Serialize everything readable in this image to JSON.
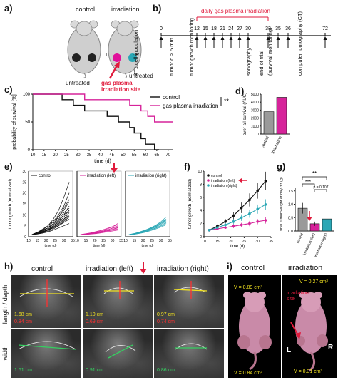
{
  "panel_a": {
    "label": "a)",
    "mouse_control": "control",
    "mouse_irradiation": "irradiation",
    "untreated_left": "untreated",
    "untreated_right": "untreated",
    "left_mark": "L",
    "right_mark": "R",
    "site_label_1": "gas plasma",
    "site_label_2": "irradiation site",
    "colors": {
      "treated": "#e0109a",
      "untreated_right": "#2aa7b5",
      "control_tumor": "#222222",
      "arrow": "#e01b3c"
    }
  },
  "panel_b": {
    "label": "b)",
    "bracket_label": "daily gas plasma irradiation",
    "ticks": [
      "0",
      "12",
      "15",
      "18",
      "21",
      "24",
      "27",
      "30",
      "33",
      "35",
      "36",
      "72"
    ],
    "events": [
      "4T1 cell inoculation",
      "tumor d > 5 mm",
      "tumor growth monitoring",
      "sonography",
      "end of trial",
      "(survival monitoring)",
      "computer tomography (CT)"
    ]
  },
  "panel_c": {
    "label": "c)",
    "ylabel": "probability of survival [%]",
    "xlabel": "time (d)",
    "legend": [
      "control",
      "gas plasma irradiation"
    ],
    "significance": "**",
    "xticks": [
      "10",
      "15",
      "20",
      "25",
      "30",
      "35",
      "40",
      "45",
      "50",
      "55",
      "60",
      "65",
      "70"
    ],
    "yticks": [
      "0",
      "50",
      "100"
    ]
  },
  "panel_d": {
    "label": "d)",
    "ylabel": "over-all survival (AUC)",
    "yticks": [
      "0",
      "1000",
      "2000",
      "3000",
      "4000",
      "5000"
    ],
    "categories": [
      "control",
      "irradiation"
    ]
  },
  "panel_e": {
    "label": "e)",
    "ylabel": "tumor growth (normalized)",
    "xlabel": "time (d)",
    "legends": [
      "control",
      "irradiation (left)",
      "irradiation (right)"
    ],
    "xticks": [
      "10",
      "15",
      "20",
      "25",
      "30",
      "35"
    ],
    "yticks": [
      "0",
      "5",
      "10",
      "15",
      "20",
      "25",
      "30"
    ]
  },
  "panel_f": {
    "label": "f)",
    "ylabel": "tumor growth (normalized)",
    "xlabel": "time (d)",
    "legend": [
      "control",
      "irradiation (left)",
      "irradiation (right)"
    ],
    "xticks": [
      "10",
      "15",
      "20",
      "25",
      "30",
      "35"
    ],
    "yticks": [
      "0",
      "2",
      "4",
      "6",
      "8",
      "10"
    ]
  },
  "panel_g": {
    "label": "g)",
    "ylabel": "final tumor weight at day 33 (g)",
    "yticks": [
      "0.0",
      "0.5",
      "1.0",
      "1.5"
    ],
    "categories": [
      "control",
      "irradiation (left)",
      "irradiation (right)"
    ],
    "sig_top": "**",
    "sig_mid": "***",
    "sig_p": "p = 0.107"
  },
  "panel_h": {
    "label": "h)",
    "columns": [
      "control",
      "irradiation (left)",
      "irradiation (right)"
    ],
    "row_labels": [
      "length / depth",
      "width"
    ],
    "measures_top": [
      [
        "1.68 cm",
        "0.84 cm"
      ],
      [
        "1.10 cm",
        "0.69 cm"
      ],
      [
        "0.97 cm",
        "0.74 cm"
      ]
    ],
    "measures_bottom": [
      "1.61 cm",
      "0.91 cm",
      "0.86 cm"
    ]
  },
  "panel_i": {
    "label": "i)",
    "columns": [
      "control",
      "irradiation"
    ],
    "vol_control_top": "V = 0.89 cm³",
    "vol_control_bottom": "V = 0.84 cm³",
    "vol_irr_top": "V = 0.27 cm³",
    "vol_irr_bottom": "V = 0.31 cm³",
    "site_1": "irradiation",
    "site_2": "site",
    "left_mark": "L",
    "right_mark": "R"
  },
  "chart_data": [
    {
      "type": "line",
      "panel": "c",
      "xlabel": "time (d)",
      "ylabel": "probability of survival [%]",
      "xlim": [
        10,
        72
      ],
      "ylim": [
        0,
        100
      ],
      "series": [
        {
          "name": "control",
          "color": "#111111",
          "steps": [
            [
              10,
              100
            ],
            [
              23,
              100
            ],
            [
              23,
              90
            ],
            [
              28,
              90
            ],
            [
              28,
              80
            ],
            [
              33,
              80
            ],
            [
              33,
              70
            ],
            [
              43,
              70
            ],
            [
              43,
              60
            ],
            [
              48,
              60
            ],
            [
              48,
              50
            ],
            [
              53,
              50
            ],
            [
              53,
              40
            ],
            [
              55,
              40
            ],
            [
              55,
              30
            ],
            [
              58,
              30
            ],
            [
              58,
              20
            ],
            [
              60,
              20
            ],
            [
              60,
              10
            ],
            [
              64,
              10
            ],
            [
              64,
              0
            ],
            [
              66,
              0
            ]
          ]
        },
        {
          "name": "gas plasma irradiation",
          "color": "#d6239a",
          "steps": [
            [
              10,
              100
            ],
            [
              33,
              100
            ],
            [
              33,
              90
            ],
            [
              53,
              90
            ],
            [
              53,
              80
            ],
            [
              58,
              80
            ],
            [
              58,
              70
            ],
            [
              61,
              70
            ],
            [
              61,
              60
            ],
            [
              64,
              60
            ],
            [
              64,
              50
            ],
            [
              72,
              50
            ]
          ]
        }
      ]
    },
    {
      "type": "bar",
      "panel": "d",
      "categories": [
        "control",
        "irradiation"
      ],
      "values": [
        2800,
        4600
      ],
      "ylim": [
        0,
        5000
      ],
      "colors": [
        "#9a9a9a",
        "#d6239a"
      ]
    },
    {
      "type": "line",
      "panel": "e",
      "xlabel": "time (d)",
      "xlim": [
        10,
        35
      ],
      "ylim": [
        0,
        30
      ],
      "days": [
        12,
        15,
        18,
        21,
        24,
        27,
        30,
        33
      ],
      "groups": [
        {
          "name": "control",
          "color": "#111111",
          "curves": [
            [
              1,
              2,
              3,
              5,
              8,
              12,
              18,
              25
            ],
            [
              1,
              1.5,
              3,
              4,
              7,
              10,
              14,
              20
            ],
            [
              1,
              2,
              2.5,
              4,
              6,
              9,
              12,
              16
            ],
            [
              1,
              1.5,
              2,
              3,
              5,
              7,
              10,
              14
            ],
            [
              1,
              2,
              3,
              4,
              6,
              8,
              11,
              13
            ],
            [
              1,
              1.5,
              2,
              3,
              4,
              6,
              8,
              11
            ],
            [
              1,
              1.2,
              2,
              3,
              4,
              5,
              7,
              9
            ],
            [
              1,
              1.5,
              2.2,
              3.5,
              5,
              6.5,
              9,
              12
            ],
            [
              1,
              1.3,
              1.8,
              2.5,
              3.5,
              5,
              6.5,
              8
            ],
            [
              1,
              1.6,
              2.4,
              3.2,
              4.5,
              6,
              8,
              10
            ],
            [
              1,
              2,
              3.5,
              5,
              7,
              9,
              13,
              17
            ],
            [
              1,
              1.4,
              2,
              3,
              4.2,
              5.5,
              7.5,
              9.5
            ],
            [
              1,
              1.2,
              1.6,
              2.2,
              3,
              4,
              5,
              6
            ],
            [
              1,
              1.8,
              2.8,
              4,
              5.5,
              7.5,
              10,
              12
            ]
          ]
        },
        {
          "name": "irradiation (left)",
          "color": "#d6239a",
          "curves": [
            [
              1,
              1.2,
              1.5,
              2,
              2.5,
              3,
              4,
              5
            ],
            [
              1,
              1.1,
              1.3,
              1.6,
              2,
              2.6,
              3.2,
              4
            ],
            [
              1,
              1.3,
              1.6,
              2.2,
              2.8,
              3.5,
              4.5,
              6
            ],
            [
              1,
              1,
              1.2,
              1.4,
              1.8,
              2.2,
              2.6,
              3
            ],
            [
              1,
              1.2,
              1.4,
              1.7,
              2.1,
              2.5,
              3,
              3.5
            ],
            [
              1,
              1.4,
              1.8,
              2.4,
              3,
              3.8,
              4.6,
              5.5
            ],
            [
              1,
              1.1,
              1.4,
              1.8,
              2.3,
              2.8,
              3.4,
              4.2
            ],
            [
              1,
              1.2,
              1.5,
              1.9,
              2.4,
              3.1,
              3.8,
              4.6
            ]
          ]
        },
        {
          "name": "irradiation (right)",
          "color": "#2aa7b5",
          "curves": [
            [
              1,
              1.4,
              2,
              2.8,
              3.8,
              5,
              6.5,
              8
            ],
            [
              1,
              1.3,
              1.8,
              2.5,
              3.4,
              4.4,
              5.6,
              7
            ],
            [
              1,
              1.5,
              2.2,
              3,
              4,
              5.2,
              6.8,
              9
            ],
            [
              1,
              1.2,
              1.6,
              2.2,
              3,
              3.8,
              4.8,
              6
            ],
            [
              1,
              1.3,
              1.9,
              2.6,
              3.5,
              4.6,
              6,
              7.5
            ],
            [
              1,
              1.1,
              1.5,
              2,
              2.7,
              3.5,
              4.4,
              5.5
            ],
            [
              1,
              1.4,
              2,
              2.7,
              3.6,
              4.7,
              6.1,
              7.8
            ],
            [
              1,
              1.2,
              1.7,
              2.3,
              3.1,
              4,
              5.1,
              6.5
            ]
          ]
        }
      ]
    },
    {
      "type": "line",
      "panel": "f",
      "xlabel": "time (d)",
      "ylabel": "tumor growth (normalized)",
      "xlim": [
        10,
        35
      ],
      "ylim": [
        0,
        10
      ],
      "x": [
        12,
        15,
        18,
        21,
        24,
        27,
        30,
        33
      ],
      "series": [
        {
          "name": "control",
          "color": "#111111",
          "values": [
            1,
            1.6,
            2.3,
            3.2,
            4.4,
            5.6,
            7.0,
            8.5
          ],
          "errors": [
            0.1,
            0.3,
            0.4,
            0.6,
            0.8,
            1.0,
            1.2,
            1.4
          ]
        },
        {
          "name": "irradiation (left)",
          "color": "#d6239a",
          "values": [
            1,
            1.2,
            1.4,
            1.6,
            1.8,
            2.0,
            2.3,
            2.5
          ],
          "errors": [
            0.1,
            0.2,
            0.2,
            0.3,
            0.3,
            0.4,
            0.4,
            0.5
          ]
        },
        {
          "name": "irradiation (right)",
          "color": "#2aa7b5",
          "values": [
            1,
            1.4,
            1.8,
            2.3,
            2.9,
            3.5,
            4.2,
            4.9
          ],
          "errors": [
            0.1,
            0.2,
            0.3,
            0.4,
            0.5,
            0.6,
            0.7,
            0.8
          ]
        }
      ]
    },
    {
      "type": "bar",
      "panel": "g",
      "categories": [
        "control",
        "irradiation (left)",
        "irradiation (right)"
      ],
      "values": [
        0.85,
        0.27,
        0.45
      ],
      "errors": [
        0.2,
        0.08,
        0.1
      ],
      "ylim": [
        0,
        1.6
      ],
      "colors": [
        "#9a9a9a",
        "#d6239a",
        "#2aa7b5"
      ]
    }
  ]
}
